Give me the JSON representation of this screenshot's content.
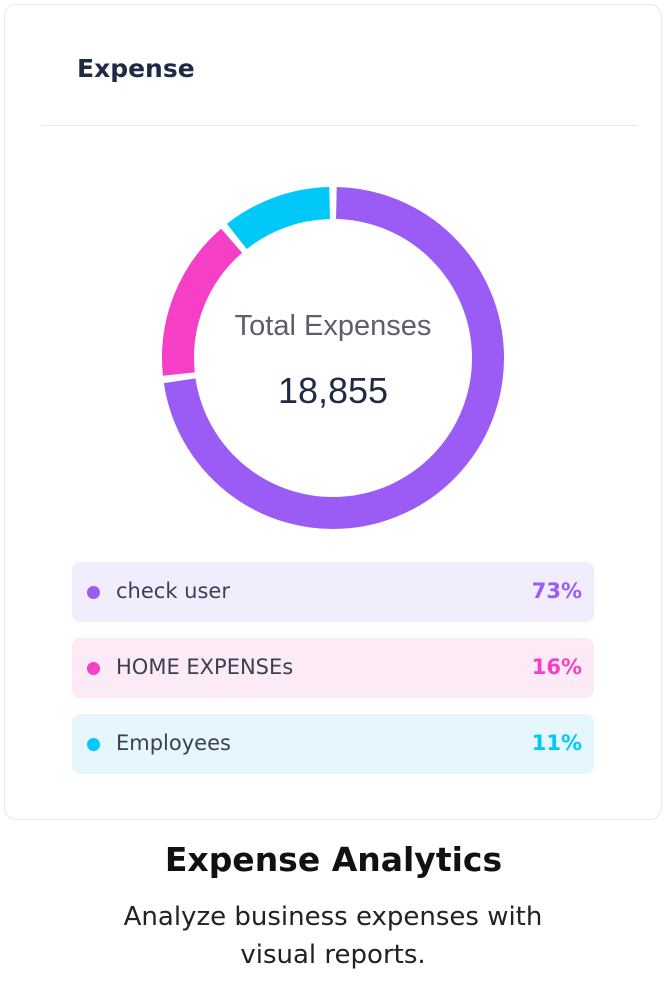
{
  "card": {
    "title": "Expense"
  },
  "donut": {
    "center_label": "Total Expenses",
    "center_value": "18,855"
  },
  "chart_data": {
    "type": "pie",
    "categories": [
      "check user",
      "HOME EXPENSEs",
      "Employees"
    ],
    "values": [
      73,
      16,
      11
    ],
    "colors": [
      "#9b5cf6",
      "#f43fc6",
      "#00c8f8"
    ],
    "title": "",
    "center_text": "Total Expenses",
    "center_value": "18,855",
    "style": "donut"
  },
  "legend": [
    {
      "name": "check user",
      "percent": "73%",
      "color": "#9b5cf6",
      "bg": "#f1edfd"
    },
    {
      "name": "HOME EXPENSEs",
      "percent": "16%",
      "color": "#f43fc6",
      "bg": "#fdeaf7"
    },
    {
      "name": "Employees",
      "percent": "11%",
      "color": "#00c8f8",
      "bg": "#e6f6fd"
    }
  ],
  "feature": {
    "title": "Expense Analytics",
    "description": "Analyze business expenses with visual reports."
  }
}
